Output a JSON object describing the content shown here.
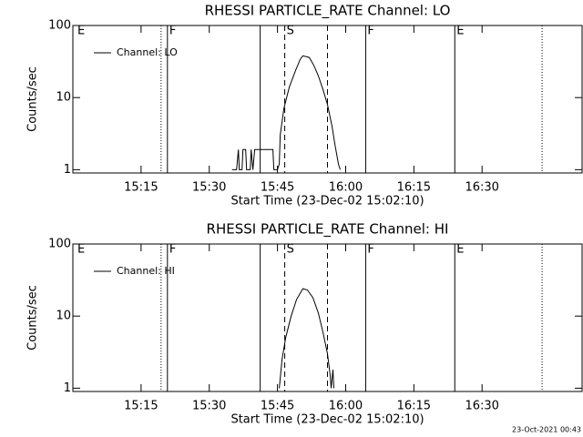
{
  "chart_data": [
    {
      "type": "line",
      "title": "RHESSI PARTICLE_RATE Channel: LO",
      "xlabel": "Start Time (23-Dec-02 15:02:10)",
      "ylabel": "Counts/sec",
      "log_y": true,
      "legend": "upper left",
      "xlim": [
        900,
        1012
      ],
      "ylim": [
        0.9,
        100
      ],
      "xticks": [
        {
          "value": 915,
          "label": "15:15"
        },
        {
          "value": 930,
          "label": "15:30"
        },
        {
          "value": 945,
          "label": "15:45"
        },
        {
          "value": 960,
          "label": "16:00"
        },
        {
          "value": 975,
          "label": "16:15"
        },
        {
          "value": 990,
          "label": "16:30"
        }
      ],
      "yticks": [
        1,
        10,
        100
      ],
      "flags": [
        {
          "x": 900.6,
          "label": "E"
        },
        {
          "x": 920.8,
          "label": "F"
        },
        {
          "x": 946.6,
          "label": "S"
        },
        {
          "x": 964.4,
          "label": "F"
        },
        {
          "x": 984,
          "label": "E"
        }
      ],
      "markers": [
        {
          "x": 919.4,
          "style": "dotted"
        },
        {
          "x": 920.8,
          "style": "solid"
        },
        {
          "x": 941.2,
          "style": "solid"
        },
        {
          "x": 946.6,
          "style": "dashed"
        },
        {
          "x": 956,
          "style": "dashed"
        },
        {
          "x": 964.4,
          "style": "solid"
        },
        {
          "x": 984,
          "style": "solid"
        },
        {
          "x": 1003.2,
          "style": "dotted"
        }
      ],
      "series": [
        {
          "name": "Channel: LO",
          "color": "#000000",
          "x": [
            935,
            936,
            936.4,
            936.6,
            937.2,
            937.4,
            938,
            938.2,
            939,
            939.2,
            939.6,
            940,
            941,
            942,
            943,
            944,
            944.2,
            945,
            945.4,
            945.6,
            946.4,
            947.6,
            949,
            950,
            950.6,
            952,
            953,
            954,
            955,
            956,
            957,
            957.6,
            958.4,
            958.8
          ],
          "values": [
            1,
            1,
            1.9,
            1,
            1,
            1.9,
            1.9,
            1,
            1,
            1.9,
            1,
            1.9,
            1.9,
            1.9,
            1.9,
            1.9,
            1,
            1,
            1.2,
            3,
            7,
            14,
            24,
            34,
            38,
            36,
            28,
            20,
            13,
            8,
            4,
            2.3,
            1.2,
            1
          ]
        }
      ]
    },
    {
      "type": "line",
      "title": "RHESSI PARTICLE_RATE Channel: HI",
      "xlabel": "Start Time (23-Dec-02 15:02:10)",
      "ylabel": "Counts/sec",
      "log_y": true,
      "legend": "upper left",
      "xlim": [
        900,
        1012
      ],
      "ylim": [
        0.9,
        100
      ],
      "xticks": [
        {
          "value": 915,
          "label": "15:15"
        },
        {
          "value": 930,
          "label": "15:30"
        },
        {
          "value": 945,
          "label": "15:45"
        },
        {
          "value": 960,
          "label": "16:00"
        },
        {
          "value": 975,
          "label": "16:15"
        },
        {
          "value": 990,
          "label": "16:30"
        }
      ],
      "yticks": [
        1,
        10,
        100
      ],
      "flags": [
        {
          "x": 900.6,
          "label": "E"
        },
        {
          "x": 920.8,
          "label": "F"
        },
        {
          "x": 946.6,
          "label": "S"
        },
        {
          "x": 964.4,
          "label": "F"
        },
        {
          "x": 984,
          "label": "E"
        }
      ],
      "markers": [
        {
          "x": 919.4,
          "style": "dotted"
        },
        {
          "x": 920.8,
          "style": "solid"
        },
        {
          "x": 941.2,
          "style": "solid"
        },
        {
          "x": 946.6,
          "style": "dashed"
        },
        {
          "x": 956,
          "style": "dashed"
        },
        {
          "x": 964.4,
          "style": "solid"
        },
        {
          "x": 984,
          "style": "solid"
        },
        {
          "x": 1003.2,
          "style": "dotted"
        }
      ],
      "series": [
        {
          "name": "Channel: HI",
          "color": "#000000",
          "x": [
            945.4,
            946,
            946.8,
            948,
            949.2,
            950.6,
            951.6,
            952.8,
            954,
            955,
            956,
            956.6,
            956.8,
            957.2,
            957.4
          ],
          "values": [
            1,
            2.5,
            5,
            10,
            17,
            24,
            23,
            18,
            11,
            6,
            3,
            1.5,
            1,
            1.8,
            1
          ]
        }
      ]
    }
  ],
  "footer": "23-Oct-2021 00:43"
}
